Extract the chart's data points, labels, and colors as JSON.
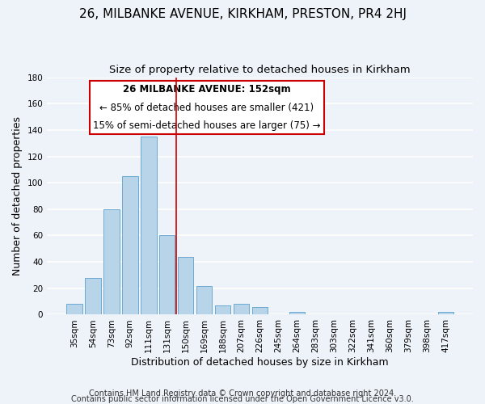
{
  "title": "26, MILBANKE AVENUE, KIRKHAM, PRESTON, PR4 2HJ",
  "subtitle": "Size of property relative to detached houses in Kirkham",
  "xlabel": "Distribution of detached houses by size in Kirkham",
  "ylabel": "Number of detached properties",
  "bar_labels": [
    "35sqm",
    "54sqm",
    "73sqm",
    "92sqm",
    "111sqm",
    "131sqm",
    "150sqm",
    "169sqm",
    "188sqm",
    "207sqm",
    "226sqm",
    "245sqm",
    "264sqm",
    "283sqm",
    "303sqm",
    "322sqm",
    "341sqm",
    "360sqm",
    "379sqm",
    "398sqm",
    "417sqm"
  ],
  "bar_values": [
    8,
    28,
    80,
    105,
    135,
    60,
    44,
    22,
    7,
    8,
    6,
    0,
    2,
    0,
    0,
    0,
    0,
    0,
    0,
    0,
    2
  ],
  "bar_color": "#b8d4e8",
  "bar_edge_color": "#6aaad4",
  "ylim": [
    0,
    180
  ],
  "yticks": [
    0,
    20,
    40,
    60,
    80,
    100,
    120,
    140,
    160,
    180
  ],
  "annotation_title": "26 MILBANKE AVENUE: 152sqm",
  "annotation_line1": "← 85% of detached houses are smaller (421)",
  "annotation_line2": "15% of semi-detached houses are larger (75) →",
  "vline_color": "#cc0000",
  "footer1": "Contains HM Land Registry data © Crown copyright and database right 2024.",
  "footer2": "Contains public sector information licensed under the Open Government Licence v3.0.",
  "background_color": "#eef2f9",
  "grid_color": "#ffffff",
  "title_fontsize": 11,
  "subtitle_fontsize": 9.5,
  "axis_label_fontsize": 9,
  "tick_fontsize": 7.5,
  "annotation_fontsize": 8.5,
  "footer_fontsize": 7
}
